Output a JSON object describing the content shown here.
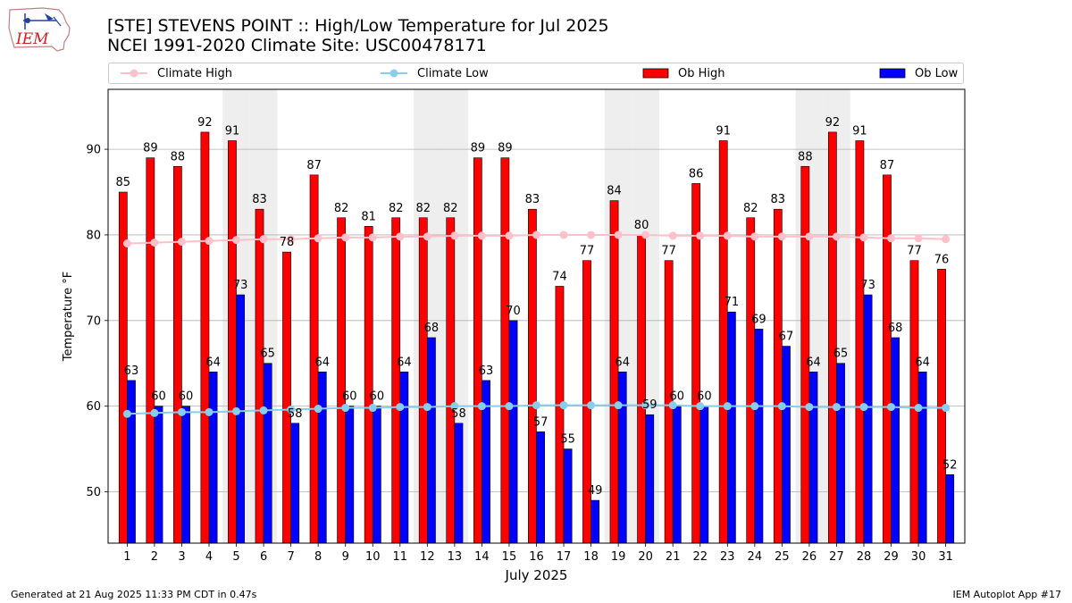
{
  "header": {
    "logo_text": "IEM",
    "title_line1": "[STE] STEVENS POINT :: High/Low Temperature for Jul 2025",
    "title_line2": "NCEI 1991-2020 Climate Site: USC00478171"
  },
  "legend": [
    {
      "label": "Climate High",
      "kind": "line",
      "color": "#ffc0cb"
    },
    {
      "label": "Climate Low",
      "kind": "line",
      "color": "#87ceeb"
    },
    {
      "label": "Ob High",
      "kind": "box",
      "color": "#ff0000"
    },
    {
      "label": "Ob Low",
      "kind": "box",
      "color": "#0000ff"
    }
  ],
  "footer": {
    "left": "Generated at 21 Aug 2025 11:33 PM CDT in 0.47s",
    "right": "IEM Autoplot App #17"
  },
  "chart_data": {
    "type": "bar",
    "title": "[STE] STEVENS POINT :: High/Low Temperature for Jul 2025",
    "subtitle": "NCEI 1991-2020 Climate Site: USC00478171",
    "xlabel": "July 2025",
    "ylabel": "Temperature °F",
    "ylim": [
      44,
      97
    ],
    "yticks": [
      50,
      60,
      70,
      80,
      90
    ],
    "grid": "y",
    "legend_position": "top",
    "categories": [
      "1",
      "2",
      "3",
      "4",
      "5",
      "6",
      "7",
      "8",
      "9",
      "10",
      "11",
      "12",
      "13",
      "14",
      "15",
      "16",
      "17",
      "18",
      "19",
      "20",
      "21",
      "22",
      "23",
      "24",
      "25",
      "26",
      "27",
      "28",
      "29",
      "30",
      "31"
    ],
    "weekend_days": [
      5,
      6,
      12,
      13,
      19,
      20,
      26,
      27
    ],
    "series": [
      {
        "name": "Ob High",
        "type": "bar",
        "color": "#ff0000",
        "values": [
          85,
          89,
          88,
          92,
          91,
          83,
          78,
          87,
          82,
          81,
          82,
          82,
          82,
          89,
          89,
          83,
          74,
          77,
          84,
          80,
          77,
          86,
          91,
          82,
          83,
          88,
          92,
          91,
          87,
          77,
          76
        ]
      },
      {
        "name": "Ob Low",
        "type": "bar",
        "color": "#0000ff",
        "values": [
          63,
          60,
          60,
          64,
          73,
          65,
          58,
          64,
          60,
          60,
          64,
          68,
          58,
          63,
          70,
          57,
          55,
          49,
          64,
          59,
          60,
          60,
          71,
          69,
          67,
          64,
          65,
          73,
          68,
          64,
          52
        ]
      },
      {
        "name": "Climate High",
        "type": "line",
        "color": "#ffc0cb",
        "values": [
          79.0,
          79.1,
          79.2,
          79.3,
          79.4,
          79.5,
          79.5,
          79.6,
          79.7,
          79.7,
          79.8,
          79.8,
          79.9,
          79.9,
          79.9,
          80.0,
          80.0,
          80.0,
          80.0,
          80.0,
          79.9,
          79.9,
          79.9,
          79.8,
          79.8,
          79.8,
          79.8,
          79.7,
          79.6,
          79.6,
          79.5
        ]
      },
      {
        "name": "Climate Low",
        "type": "line",
        "color": "#87ceeb",
        "values": [
          59.1,
          59.2,
          59.3,
          59.3,
          59.4,
          59.5,
          59.6,
          59.7,
          59.8,
          59.8,
          59.9,
          59.9,
          60.0,
          60.0,
          60.0,
          60.1,
          60.1,
          60.1,
          60.1,
          60.1,
          60.1,
          60.0,
          60.0,
          60.0,
          60.0,
          59.9,
          59.9,
          59.9,
          59.9,
          59.8,
          59.8
        ]
      }
    ]
  }
}
